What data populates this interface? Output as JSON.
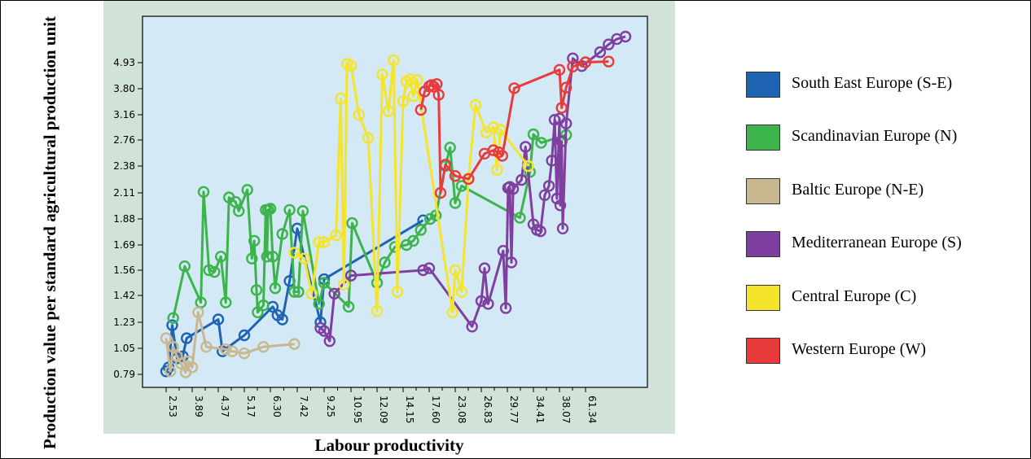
{
  "chart_data": {
    "type": "line",
    "xlabel": "Labour productivity",
    "ylabel": "Production value per standard agricultural production unit",
    "x_tick_labels": [
      "2.53",
      "3.89",
      "4.37",
      "5.17",
      "6.30",
      "7.42",
      "9.25",
      "10.95",
      "12.09",
      "14.15",
      "17.60",
      "23.08",
      "26.83",
      "29.77",
      "34.41",
      "38.07",
      "61.34"
    ],
    "y_tick_labels": [
      "0.79",
      "1.05",
      "1.23",
      "1.42",
      "1.56",
      "1.69",
      "1.88",
      "2.11",
      "2.38",
      "2.76",
      "3.16",
      "3.80",
      "4.93"
    ],
    "x_axis_scale": "ordinal (per-unit categories, tick labels shown every other value)",
    "y_axis_scale": "ordinal (per-unit categories)",
    "legend_position": "right",
    "series": [
      {
        "name": "South East Europe (S-E)",
        "color": "#1f63b3",
        "points": [
          [
            2.53,
            0.82
          ],
          [
            2.66,
            0.86
          ],
          [
            2.85,
            1.21
          ],
          [
            3.1,
            0.95
          ],
          [
            3.4,
            0.97
          ],
          [
            3.6,
            1.12
          ],
          [
            4.37,
            1.25
          ],
          [
            4.5,
            1.02
          ],
          [
            5.17,
            1.14
          ],
          [
            6.4,
            1.34
          ],
          [
            6.6,
            1.28
          ],
          [
            6.8,
            1.25
          ],
          [
            7.1,
            1.5
          ],
          [
            7.42,
            1.81
          ],
          [
            9.0,
            1.23
          ],
          [
            9.25,
            1.51
          ],
          [
            16.8,
            1.87
          ]
        ]
      },
      {
        "name": "Scandinavian Europe (N)",
        "color": "#3cb44b",
        "points": [
          [
            2.9,
            1.26
          ],
          [
            3.5,
            1.58
          ],
          [
            4.05,
            1.37
          ],
          [
            4.1,
            2.12
          ],
          [
            4.2,
            1.56
          ],
          [
            4.3,
            1.55
          ],
          [
            4.45,
            1.63
          ],
          [
            4.6,
            1.37
          ],
          [
            4.7,
            2.07
          ],
          [
            4.9,
            2.03
          ],
          [
            5.0,
            1.95
          ],
          [
            5.3,
            2.14
          ],
          [
            5.5,
            1.62
          ],
          [
            5.6,
            1.72
          ],
          [
            5.7,
            1.45
          ],
          [
            5.75,
            1.3
          ],
          [
            6.0,
            1.35
          ],
          [
            6.1,
            1.96
          ],
          [
            6.15,
            1.63
          ],
          [
            6.2,
            1.96
          ],
          [
            6.3,
            1.97
          ],
          [
            6.4,
            1.63
          ],
          [
            6.5,
            1.46
          ],
          [
            6.8,
            1.77
          ],
          [
            7.1,
            1.96
          ],
          [
            7.3,
            1.44
          ],
          [
            7.5,
            1.44
          ],
          [
            7.8,
            1.95
          ],
          [
            8.9,
            1.36
          ],
          [
            9.25,
            1.49
          ],
          [
            10.8,
            1.34
          ],
          [
            11.0,
            1.85
          ],
          [
            12.09,
            1.49
          ],
          [
            12.7,
            1.6
          ],
          [
            13.5,
            1.68
          ],
          [
            14.6,
            1.69
          ],
          [
            15.5,
            1.72
          ],
          [
            16.5,
            1.8
          ],
          [
            17.8,
            1.88
          ],
          [
            19.0,
            1.91
          ],
          [
            21.0,
            2.38
          ],
          [
            22.0,
            2.65
          ],
          [
            23.08,
            2.02
          ],
          [
            24.0,
            2.18
          ],
          [
            32.0,
            1.89
          ],
          [
            33.8,
            2.32
          ],
          [
            34.41,
            2.85
          ],
          [
            35.5,
            2.72
          ],
          [
            44.0,
            2.84
          ]
        ]
      },
      {
        "name": "Baltic Europe (N-E)",
        "color": "#c8b890",
        "points": [
          [
            2.53,
            1.12
          ],
          [
            2.75,
            0.82
          ],
          [
            2.9,
            1.06
          ],
          [
            3.1,
            0.97
          ],
          [
            3.3,
            0.9
          ],
          [
            3.55,
            0.81
          ],
          [
            3.7,
            0.92
          ],
          [
            3.89,
            0.86
          ],
          [
            4.0,
            1.3
          ],
          [
            4.15,
            1.06
          ],
          [
            4.6,
            1.04
          ],
          [
            4.8,
            1.02
          ],
          [
            5.17,
            1.0
          ],
          [
            6.0,
            1.06
          ],
          [
            7.3,
            1.08
          ]
        ]
      },
      {
        "name": "Mediterranean Europe (S)",
        "color": "#7f3f9f",
        "points": [
          [
            9.0,
            1.19
          ],
          [
            9.25,
            1.17
          ],
          [
            9.6,
            1.1
          ],
          [
            9.9,
            1.43
          ],
          [
            10.95,
            1.53
          ],
          [
            16.8,
            1.56
          ],
          [
            17.6,
            1.57
          ],
          [
            25.5,
            1.2
          ],
          [
            26.83,
            1.38
          ],
          [
            27.2,
            1.57
          ],
          [
            27.6,
            1.36
          ],
          [
            29.3,
            1.66
          ],
          [
            29.6,
            1.33
          ],
          [
            29.9,
            2.16
          ],
          [
            30.2,
            2.17
          ],
          [
            30.5,
            1.6
          ],
          [
            30.8,
            2.15
          ],
          [
            32.3,
            2.24
          ],
          [
            33.0,
            2.66
          ],
          [
            34.41,
            1.84
          ],
          [
            34.9,
            1.8
          ],
          [
            35.4,
            1.79
          ],
          [
            36.0,
            2.09
          ],
          [
            36.6,
            2.18
          ],
          [
            37.0,
            2.46
          ],
          [
            37.4,
            3.08
          ],
          [
            37.7,
            2.06
          ],
          [
            38.07,
            3.1
          ],
          [
            38.8,
            2.0
          ],
          [
            40.0,
            2.74
          ],
          [
            41.0,
            1.81
          ],
          [
            44.0,
            3.02
          ],
          [
            50.0,
            5.04
          ],
          [
            58.0,
            4.78
          ],
          [
            70.0,
            5.2
          ],
          [
            75.0,
            5.4
          ],
          [
            80.0,
            5.54
          ],
          [
            85.0,
            5.6
          ]
        ]
      },
      {
        "name": "Central Europe (C)",
        "color": "#f5e42c",
        "points": [
          [
            7.3,
            1.65
          ],
          [
            7.9,
            1.62
          ],
          [
            8.4,
            1.43
          ],
          [
            8.9,
            1.71
          ],
          [
            9.25,
            1.71
          ],
          [
            10.0,
            1.76
          ],
          [
            10.3,
            3.56
          ],
          [
            10.5,
            1.48
          ],
          [
            10.7,
            4.88
          ],
          [
            10.95,
            4.8
          ],
          [
            11.3,
            3.16
          ],
          [
            11.7,
            2.79
          ],
          [
            12.09,
            1.31
          ],
          [
            12.5,
            4.42
          ],
          [
            13.0,
            3.25
          ],
          [
            13.4,
            4.99
          ],
          [
            13.7,
            1.44
          ],
          [
            14.15,
            3.49
          ],
          [
            14.6,
            4.1
          ],
          [
            15.1,
            4.21
          ],
          [
            15.5,
            3.62
          ],
          [
            16.0,
            4.18
          ],
          [
            22.5,
            1.3
          ],
          [
            23.08,
            1.56
          ],
          [
            24.0,
            1.44
          ],
          [
            25.0,
            2.26
          ],
          [
            26.0,
            3.4
          ],
          [
            27.4,
            2.88
          ],
          [
            28.2,
            2.96
          ],
          [
            28.6,
            2.34
          ],
          [
            29.0,
            2.92
          ],
          [
            33.5,
            2.38
          ]
        ]
      },
      {
        "name": "Western Europe (W)",
        "color": "#e83c3c",
        "points": [
          [
            16.5,
            3.28
          ],
          [
            17.0,
            3.73
          ],
          [
            17.6,
            3.9
          ],
          [
            18.1,
            3.96
          ],
          [
            18.6,
            3.88
          ],
          [
            19.2,
            4.0
          ],
          [
            19.6,
            3.65
          ],
          [
            20.0,
            2.11
          ],
          [
            21.0,
            2.4
          ],
          [
            23.08,
            2.28
          ],
          [
            25.0,
            2.25
          ],
          [
            27.2,
            2.56
          ],
          [
            28.2,
            2.61
          ],
          [
            28.8,
            2.58
          ],
          [
            29.2,
            2.53
          ],
          [
            31.0,
            3.82
          ],
          [
            38.07,
            4.62
          ],
          [
            40.0,
            3.33
          ],
          [
            44.0,
            3.85
          ],
          [
            50.0,
            4.76
          ],
          [
            61.34,
            4.94
          ],
          [
            75.0,
            4.96
          ]
        ]
      }
    ]
  }
}
